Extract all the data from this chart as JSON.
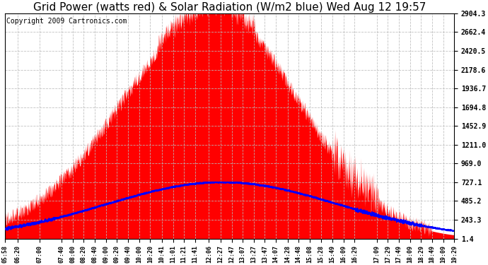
{
  "title": "Grid Power (watts red) & Solar Radiation (W/m2 blue) Wed Aug 12 19:57",
  "copyright": "Copyright 2009 Cartronics.com",
  "y_ticks": [
    1.4,
    243.3,
    485.2,
    727.1,
    969.0,
    1211.0,
    1452.9,
    1694.8,
    1936.7,
    2178.6,
    2420.5,
    2662.4,
    2904.3
  ],
  "x_labels": [
    "05:58",
    "06:20",
    "07:00",
    "07:40",
    "08:00",
    "08:20",
    "08:40",
    "09:00",
    "09:20",
    "09:40",
    "10:00",
    "10:20",
    "10:41",
    "11:01",
    "11:21",
    "11:41",
    "12:06",
    "12:27",
    "12:47",
    "13:07",
    "13:27",
    "13:47",
    "14:07",
    "14:28",
    "14:48",
    "15:08",
    "15:28",
    "15:49",
    "16:09",
    "16:29",
    "17:09",
    "17:29",
    "17:49",
    "18:09",
    "18:29",
    "18:49",
    "19:09",
    "19:29"
  ],
  "ymin": 1.4,
  "ymax": 2904.3,
  "background_color": "#ffffff",
  "grid_color": "#bbbbbb",
  "red_color": "#ff0000",
  "blue_color": "#0000ff",
  "title_fontsize": 11,
  "copyright_fontsize": 7
}
